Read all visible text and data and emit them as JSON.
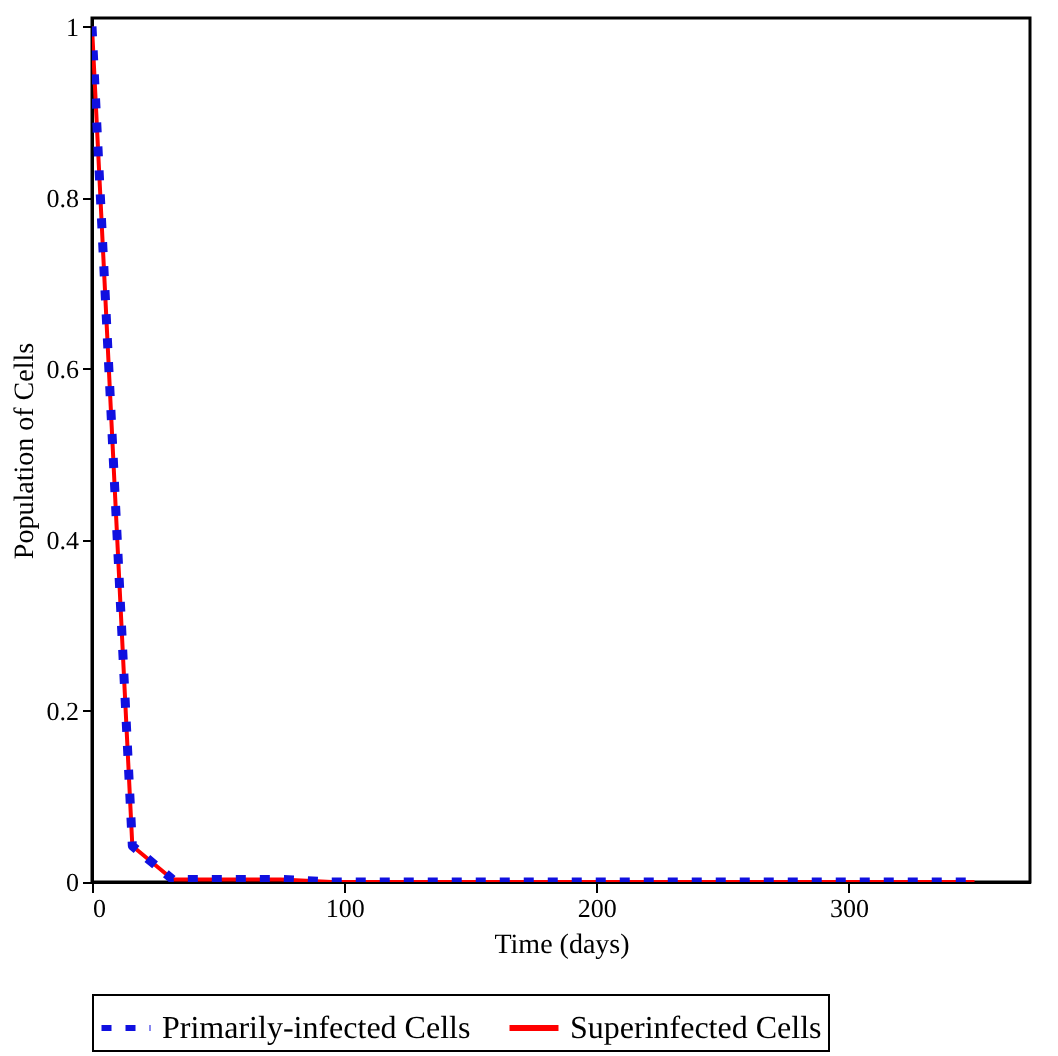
{
  "chart_data": {
    "type": "line",
    "xlabel": "Time (days)",
    "ylabel": "Population of Cells",
    "x": [
      0,
      16,
      32,
      45,
      75,
      95,
      350
    ],
    "series": [
      {
        "name": "Primarily-infected Cells",
        "color": "#1010e0",
        "line_style": "dotted",
        "values": [
          1,
          0.042,
          0.003,
          0.003,
          0.003,
          0,
          0
        ]
      },
      {
        "name": "Superinfected Cells",
        "color": "#ff0000",
        "line_style": "solid",
        "values": [
          1,
          0.042,
          0.003,
          0.003,
          0.003,
          0,
          0
        ]
      }
    ],
    "xlim": [
      0,
      372
    ],
    "xticks": [
      0,
      100,
      200,
      300
    ],
    "ylim": [
      0,
      1.01
    ],
    "yticks": [
      0,
      0.2,
      0.4,
      0.6,
      0.8,
      1
    ],
    "grid": false,
    "legend": "bottom",
    "marker": "none"
  }
}
